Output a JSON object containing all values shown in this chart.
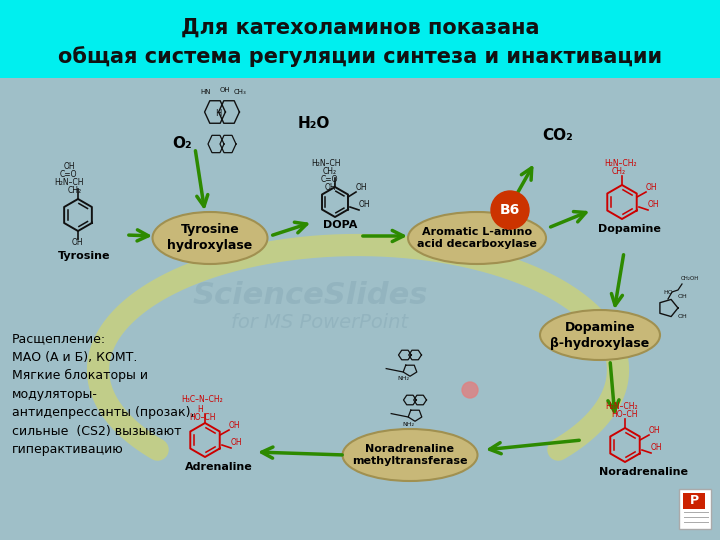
{
  "title_line1": "Для катехоламинов показана",
  "title_line2": "общая система регуляции синтеза и инактивации",
  "title_bg": "#00EFEF",
  "main_bg": "#9fbfc8",
  "enzyme_color": "#c8b878",
  "enzyme_edge": "#a09050",
  "arrow_color": "#2d8a00",
  "text_left": "Расщепление:\nМАО (А и Б), КОМТ.\nМягкие блокаторы и\nмодуляторы-\nантидепрессанты (прозак),\nсильные  (CS2) вызывают\nгиперактивацию",
  "label_tyrosine": "Tyrosine",
  "label_dopa": "DOPA",
  "label_dopamine": "Dopamine",
  "label_noradrenaline": "Noradrenaline",
  "label_adrenaline": "Adrenaline",
  "label_tyr_hyd": "Tyrosine\nhydroxylase",
  "label_aromatic": "Aromatic L-amino\nacid decarboxylase",
  "label_dop_hyd": "Dopamine\nβ-hydroxylase",
  "label_nor_meth": "Noradrenaline\nmethyltransferase",
  "label_o2": "O₂",
  "label_h2o": "H₂O",
  "label_co2": "CO₂",
  "label_b6": "B6",
  "watermark1": "ScienceSlides",
  "watermark2": "for MS PowerPoint",
  "chem_black": "#111111",
  "chem_red": "#cc0000",
  "loop_color": "#d8d860",
  "b6_color": "#cc3300"
}
